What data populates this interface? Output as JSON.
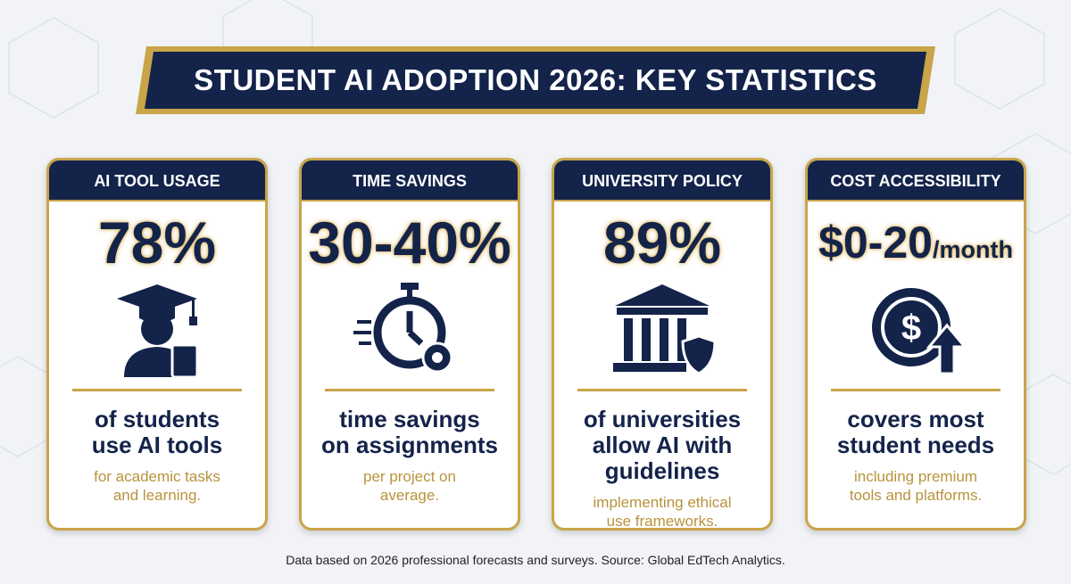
{
  "title": "STUDENT AI ADOPTION 2026: KEY STATISTICS",
  "cards": [
    {
      "header": "AI TOOL USAGE",
      "stat": "78%",
      "description": [
        "of students",
        "use AI tools"
      ],
      "note": [
        "for academic tasks",
        "and learning."
      ]
    },
    {
      "header": "TIME SAVINGS",
      "stat": "30-40%",
      "description": [
        "time savings",
        "on assignments"
      ],
      "note": [
        "per project on",
        "average."
      ]
    },
    {
      "header": "UNIVERSITY POLICY",
      "stat": "89%",
      "description": [
        "of universities",
        "allow AI with",
        "guidelines"
      ],
      "note": [
        "implementing ethical",
        "use frameworks."
      ]
    },
    {
      "header": "COST ACCESSIBILITY",
      "stat": "$0-20",
      "stat_suffix": "/month",
      "description": [
        "covers most",
        "student needs"
      ],
      "note": [
        "including premium",
        "tools and platforms."
      ]
    }
  ],
  "footer": "Data based on 2026 professional forecasts and surveys. Source: Global EdTech Analytics."
}
